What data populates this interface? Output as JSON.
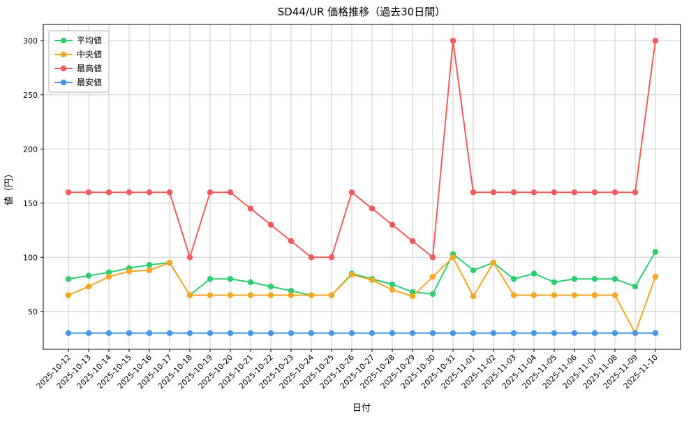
{
  "chart_data": {
    "type": "line",
    "title": "SD44/UR 価格推移（過去30日間）",
    "xlabel": "日付",
    "ylabel": "値（円）",
    "categories": [
      "2025-10-12",
      "2025-10-13",
      "2025-10-14",
      "2025-10-15",
      "2025-10-16",
      "2025-10-17",
      "2025-10-18",
      "2025-10-19",
      "2025-10-20",
      "2025-10-21",
      "2025-10-22",
      "2025-10-23",
      "2025-10-24",
      "2025-10-25",
      "2025-10-26",
      "2025-10-27",
      "2025-10-28",
      "2025-10-29",
      "2025-10-30",
      "2025-10-31",
      "2025-11-01",
      "2025-11-02",
      "2025-11-03",
      "2025-11-04",
      "2025-11-05",
      "2025-11-06",
      "2025-11-07",
      "2025-11-08",
      "2025-11-09",
      "2025-11-10"
    ],
    "series": [
      {
        "key": "average",
        "name": "平均値",
        "color": "#2ecc71",
        "values": [
          80,
          83,
          86,
          90,
          93,
          95,
          65,
          80,
          80,
          77,
          73,
          69,
          65,
          65,
          85,
          80,
          75,
          68,
          66,
          103,
          88,
          95,
          80,
          85,
          77,
          80,
          80,
          80,
          73,
          105
        ]
      },
      {
        "key": "median",
        "name": "中央値",
        "color": "#f5a623",
        "values": [
          65,
          73,
          82,
          87,
          88,
          95,
          65,
          65,
          65,
          65,
          65,
          65,
          65,
          65,
          84,
          79,
          70,
          64,
          82,
          100,
          64,
          95,
          65,
          65,
          65,
          65,
          65,
          65,
          30,
          82
        ]
      },
      {
        "key": "max",
        "name": "最高値",
        "color": "#f15b5b",
        "values": [
          160,
          160,
          160,
          160,
          160,
          160,
          100,
          160,
          160,
          145,
          130,
          115,
          100,
          100,
          160,
          145,
          130,
          115,
          100,
          300,
          160,
          160,
          160,
          160,
          160,
          160,
          160,
          160,
          160,
          300
        ]
      },
      {
        "key": "min",
        "name": "最安値",
        "color": "#4696ec",
        "values": [
          30,
          30,
          30,
          30,
          30,
          30,
          30,
          30,
          30,
          30,
          30,
          30,
          30,
          30,
          30,
          30,
          30,
          30,
          30,
          30,
          30,
          30,
          30,
          30,
          30,
          30,
          30,
          30,
          30,
          30
        ]
      }
    ],
    "yticks": [
      50,
      100,
      150,
      200,
      250,
      300
    ],
    "ylim": [
      15,
      315
    ],
    "grid": true,
    "grid_color": "#cccccc",
    "background": "#ffffff",
    "legend_position": "upper-left"
  }
}
